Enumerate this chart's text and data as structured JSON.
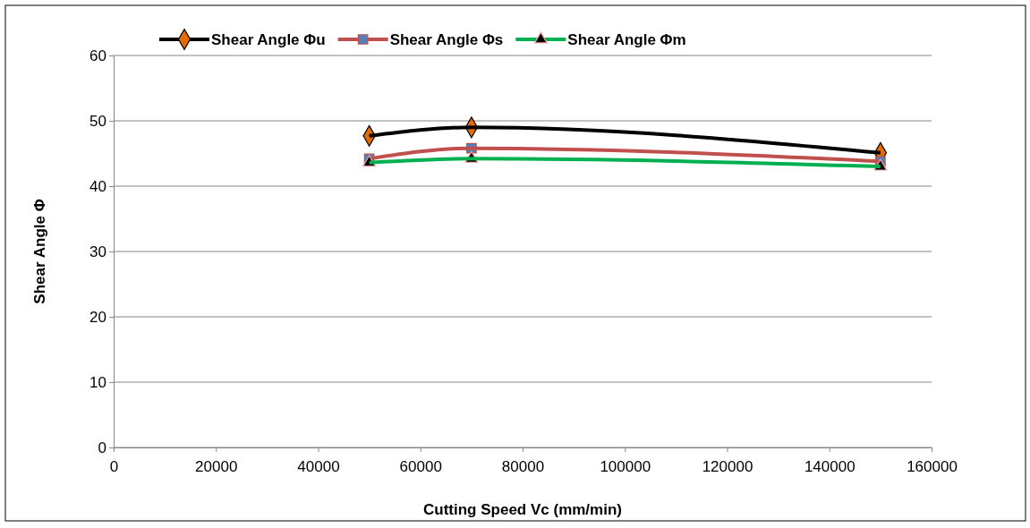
{
  "chart_data": {
    "type": "line",
    "xlabel": "Cutting Speed Vc (mm/min)",
    "ylabel": "Shear Angle Φ",
    "x": [
      50000,
      70000,
      150000
    ],
    "series": [
      {
        "name": "Shear Angle Φu",
        "color": "#000000",
        "marker": "diamond",
        "values": [
          47.7,
          49.0,
          45.1
        ]
      },
      {
        "name": "Shear Angle Φs",
        "color": "#c0504d",
        "marker": "square",
        "values": [
          44.2,
          45.8,
          43.8
        ]
      },
      {
        "name": "Shear Angle Φm",
        "color": "#00b050",
        "marker": "triangle",
        "values": [
          43.6,
          44.2,
          43.0
        ]
      }
    ],
    "xlim": [
      0,
      160000
    ],
    "xticks": [
      0,
      20000,
      40000,
      60000,
      80000,
      100000,
      120000,
      140000,
      160000
    ],
    "ylim": [
      0,
      60
    ],
    "yticks": [
      0,
      10,
      20,
      30,
      40,
      50,
      60
    ],
    "grid": "y",
    "legend": "top",
    "line_style": "solid"
  }
}
